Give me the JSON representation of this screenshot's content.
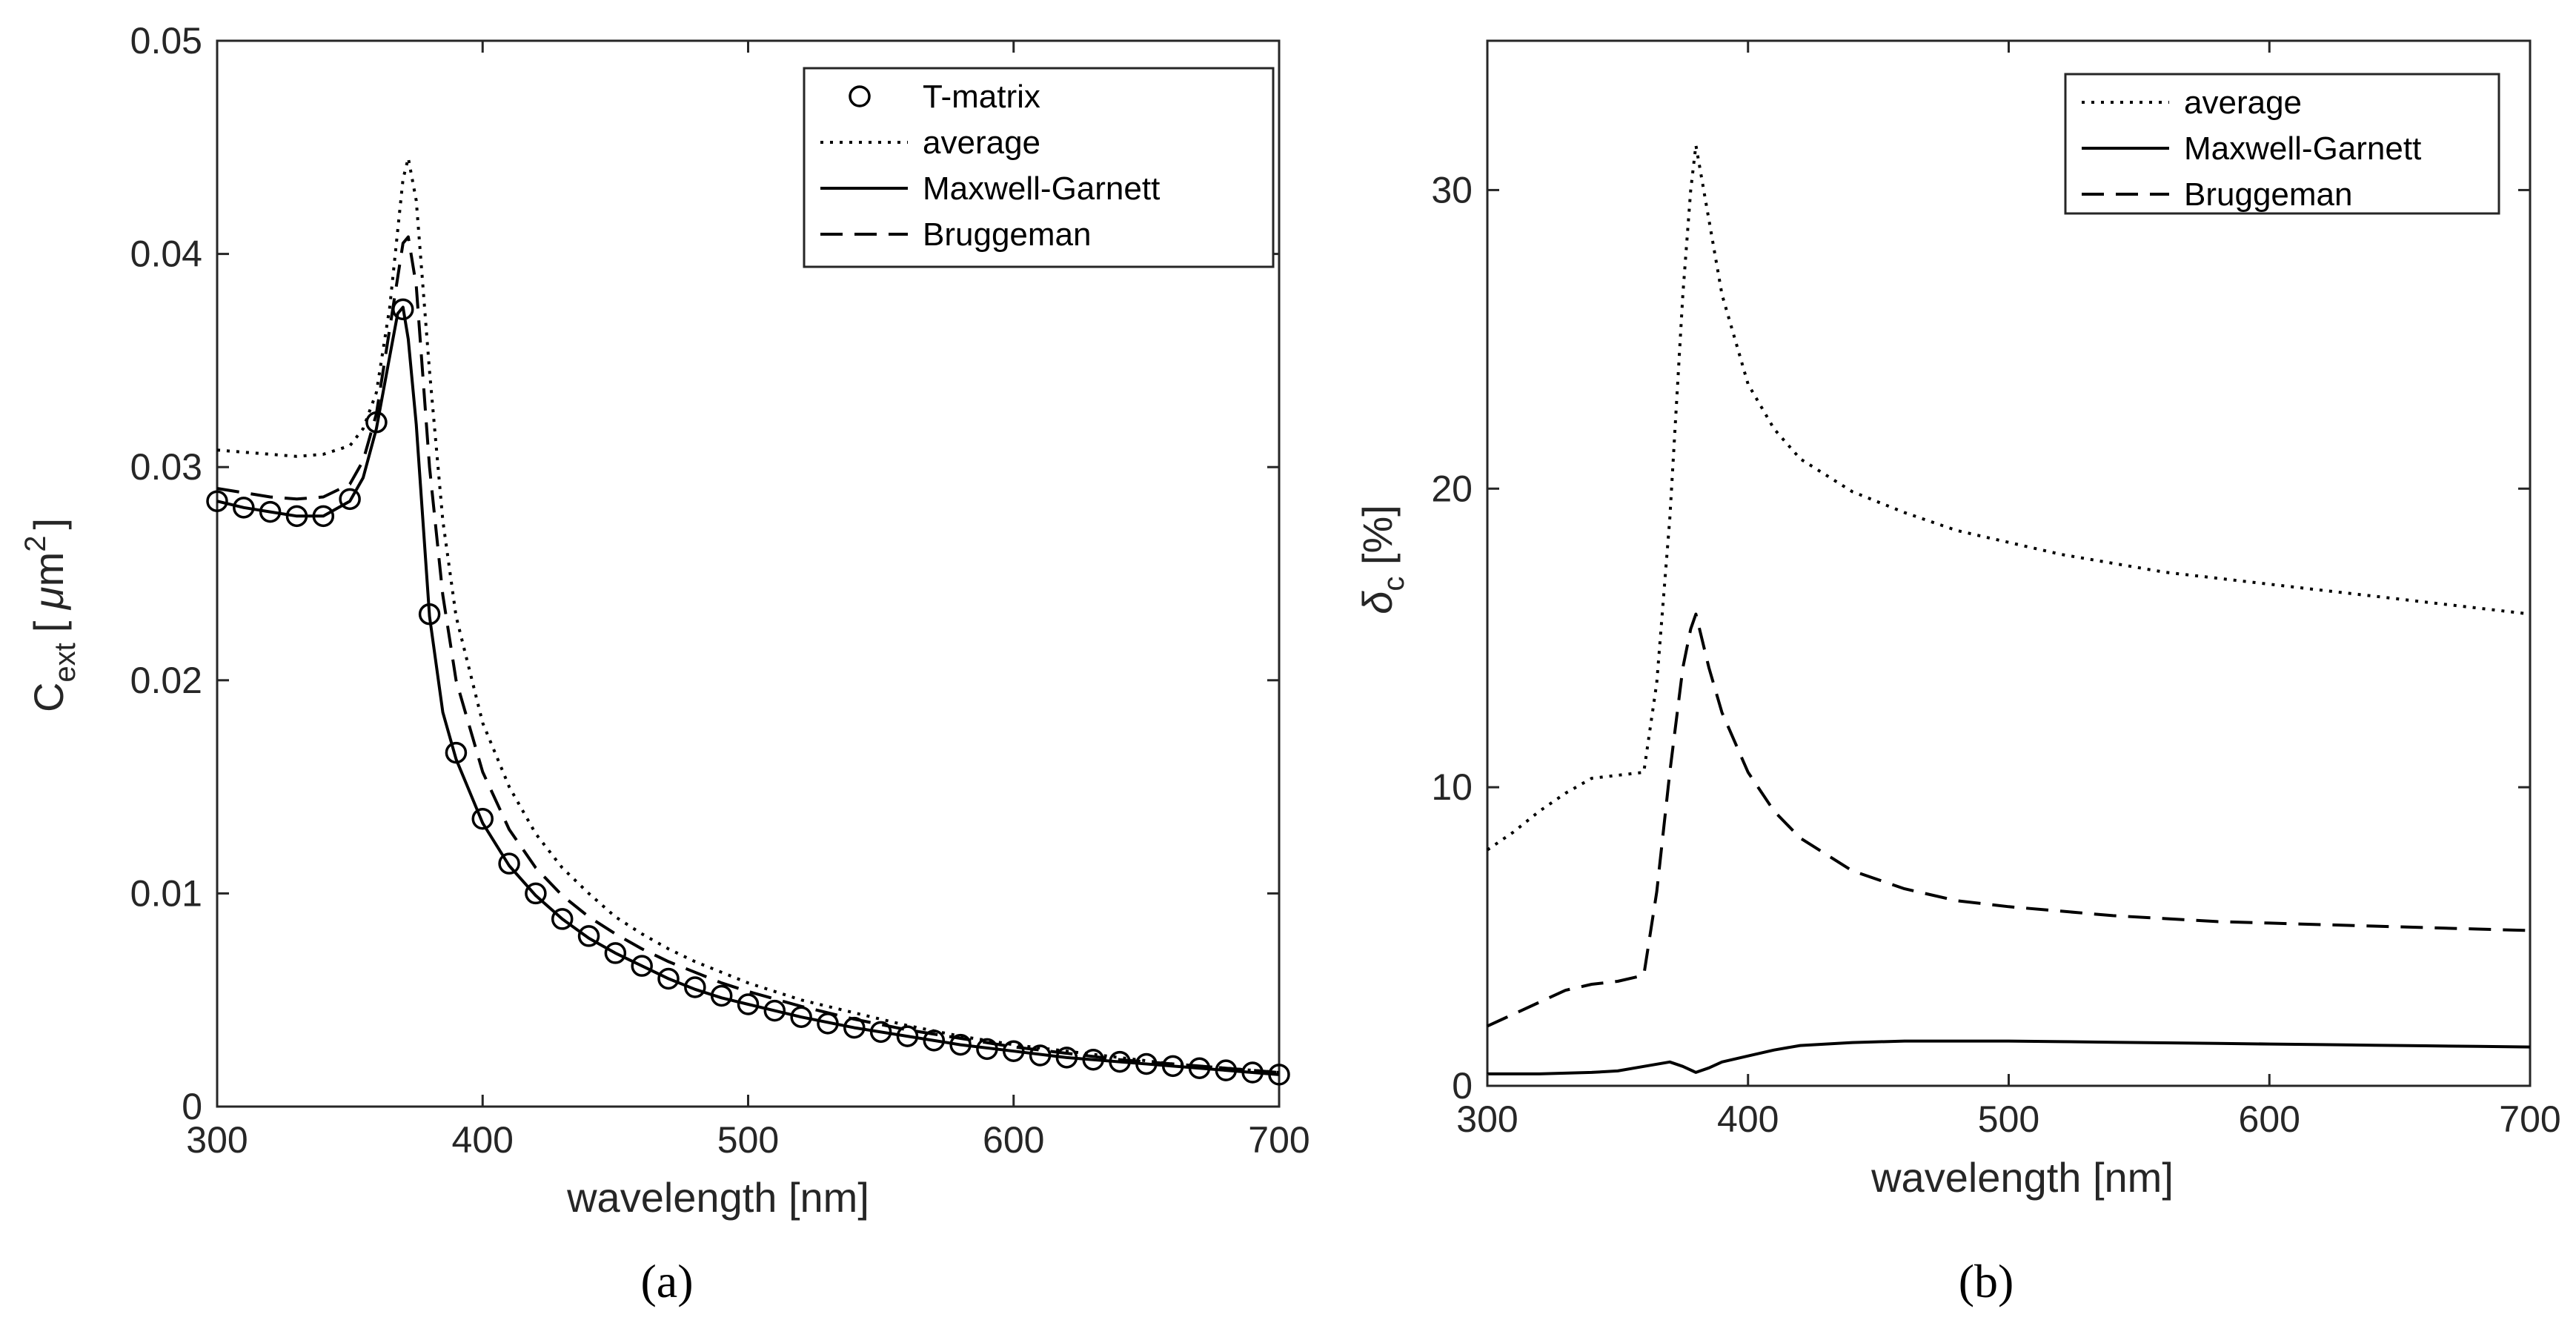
{
  "chart_data": [
    {
      "type": "line",
      "panel_label": "(a)",
      "xlabel": "wavelength [nm]",
      "ylabel": "C_ext [μm^2]",
      "ylabel_parts": {
        "main": "C",
        "sub": "ext",
        "unit_open": "[ ",
        "mu": "μ",
        "m": "m",
        "sup": "2",
        "unit_close": "]"
      },
      "xlim": [
        300,
        700
      ],
      "ylim": [
        0,
        0.05
      ],
      "xticks": [
        300,
        400,
        500,
        600,
        700
      ],
      "xtick_labels": [
        "300",
        "400",
        "500",
        "600",
        "700"
      ],
      "yticks": [
        0,
        0.01,
        0.02,
        0.03,
        0.04,
        0.05
      ],
      "ytick_labels": [
        "0",
        "0.01",
        "0.02",
        "0.03",
        "0.04",
        "0.05"
      ],
      "legend_position": "top-right",
      "series": [
        {
          "name": "T-matrix",
          "style": "circles",
          "x": [
            300,
            310,
            320,
            330,
            340,
            350,
            360,
            370,
            380,
            390,
            400,
            410,
            420,
            430,
            440,
            450,
            460,
            470,
            480,
            490,
            500,
            510,
            520,
            530,
            540,
            550,
            560,
            570,
            580,
            590,
            600,
            610,
            620,
            630,
            640,
            650,
            660,
            670,
            680,
            690,
            700
          ],
          "y": [
            0.0284,
            0.0281,
            0.0279,
            0.0277,
            0.0277,
            0.0285,
            0.0321,
            0.0374,
            0.0231,
            0.0166,
            0.0135,
            0.0114,
            0.01,
            0.0088,
            0.008,
            0.0072,
            0.0066,
            0.006,
            0.0056,
            0.0052,
            0.0048,
            0.0045,
            0.0042,
            0.0039,
            0.0037,
            0.0035,
            0.0033,
            0.0031,
            0.0029,
            0.0027,
            0.0026,
            0.0024,
            0.0023,
            0.0022,
            0.0021,
            0.002,
            0.0019,
            0.0018,
            0.0017,
            0.0016,
            0.0015
          ]
        },
        {
          "name": "average",
          "style": "dotted",
          "x": [
            300,
            310,
            320,
            330,
            340,
            350,
            355,
            360,
            365,
            370,
            372,
            375,
            380,
            385,
            390,
            400,
            410,
            420,
            430,
            440,
            450,
            460,
            470,
            480,
            490,
            500,
            520,
            540,
            560,
            580,
            600,
            620,
            640,
            660,
            680,
            700
          ],
          "y": [
            0.0308,
            0.0307,
            0.0306,
            0.0305,
            0.0306,
            0.031,
            0.0318,
            0.0335,
            0.0375,
            0.0435,
            0.0445,
            0.0425,
            0.0345,
            0.0275,
            0.023,
            0.018,
            0.015,
            0.0128,
            0.0112,
            0.01,
            0.0089,
            0.0081,
            0.0074,
            0.0068,
            0.0063,
            0.0058,
            0.005,
            0.0044,
            0.0038,
            0.0033,
            0.0029,
            0.0026,
            0.0023,
            0.002,
            0.0018,
            0.0016
          ]
        },
        {
          "name": "Maxwell-Garnett",
          "style": "solid",
          "x": [
            300,
            310,
            320,
            330,
            340,
            350,
            355,
            360,
            365,
            368,
            370,
            372,
            375,
            380,
            385,
            390,
            400,
            410,
            420,
            430,
            440,
            450,
            460,
            470,
            480,
            490,
            500,
            520,
            540,
            560,
            580,
            600,
            620,
            640,
            660,
            680,
            700
          ],
          "y": [
            0.0284,
            0.0281,
            0.0279,
            0.0277,
            0.0277,
            0.0284,
            0.0295,
            0.0318,
            0.0352,
            0.0372,
            0.0375,
            0.036,
            0.032,
            0.023,
            0.0185,
            0.0163,
            0.0133,
            0.0113,
            0.0099,
            0.0088,
            0.0079,
            0.0072,
            0.0066,
            0.006,
            0.0055,
            0.0051,
            0.0048,
            0.0042,
            0.0037,
            0.0033,
            0.0029,
            0.0026,
            0.0023,
            0.0021,
            0.0019,
            0.0017,
            0.0015
          ]
        },
        {
          "name": "Bruggeman",
          "style": "dashed",
          "x": [
            300,
            310,
            320,
            330,
            340,
            350,
            355,
            360,
            365,
            370,
            372,
            375,
            380,
            385,
            390,
            400,
            410,
            420,
            430,
            440,
            450,
            460,
            470,
            480,
            490,
            500,
            520,
            540,
            560,
            580,
            600,
            620,
            640,
            660,
            680,
            700
          ],
          "y": [
            0.029,
            0.0288,
            0.0286,
            0.0285,
            0.0286,
            0.0292,
            0.0303,
            0.0325,
            0.0365,
            0.0405,
            0.0408,
            0.0385,
            0.03,
            0.024,
            0.02,
            0.0157,
            0.013,
            0.0112,
            0.0099,
            0.0089,
            0.0081,
            0.0074,
            0.0068,
            0.0063,
            0.0058,
            0.0054,
            0.0047,
            0.0041,
            0.0036,
            0.0032,
            0.0028,
            0.0025,
            0.0022,
            0.002,
            0.0018,
            0.0016
          ]
        }
      ]
    },
    {
      "type": "line",
      "panel_label": "(b)",
      "xlabel": "wavelength [nm]",
      "ylabel": "δ_c [%]",
      "ylabel_parts": {
        "main": "δ",
        "sub": "c",
        "unit": " [%]"
      },
      "xlim": [
        300,
        700
      ],
      "ylim": [
        0,
        35
      ],
      "xticks": [
        300,
        400,
        500,
        600,
        700
      ],
      "xtick_labels": [
        "300",
        "400",
        "500",
        "600",
        "700"
      ],
      "yticks": [
        0,
        10,
        20,
        30
      ],
      "ytick_labels": [
        "0",
        "10",
        "20",
        "30"
      ],
      "legend_position": "top-right",
      "series": [
        {
          "name": "average",
          "style": "dotted",
          "x": [
            300,
            310,
            320,
            330,
            340,
            350,
            360,
            365,
            370,
            375,
            378,
            380,
            385,
            390,
            400,
            410,
            420,
            440,
            460,
            480,
            500,
            520,
            540,
            560,
            580,
            600,
            620,
            640,
            660,
            680,
            700
          ],
          "y": [
            7.9,
            8.5,
            9.2,
            9.8,
            10.3,
            10.4,
            10.5,
            13.5,
            19.0,
            26.5,
            30.0,
            31.5,
            29.0,
            26.5,
            23.5,
            22.0,
            21.0,
            19.9,
            19.2,
            18.6,
            18.2,
            17.8,
            17.5,
            17.2,
            17.0,
            16.8,
            16.6,
            16.4,
            16.2,
            16.0,
            15.8
          ]
        },
        {
          "name": "Maxwell-Garnett",
          "style": "solid",
          "x": [
            300,
            320,
            340,
            350,
            360,
            370,
            375,
            380,
            385,
            390,
            400,
            410,
            420,
            440,
            460,
            480,
            500,
            520,
            540,
            560,
            580,
            600,
            620,
            640,
            660,
            680,
            700
          ],
          "y": [
            0.4,
            0.4,
            0.45,
            0.5,
            0.65,
            0.8,
            0.65,
            0.45,
            0.6,
            0.8,
            1.0,
            1.2,
            1.35,
            1.45,
            1.5,
            1.5,
            1.5,
            1.48,
            1.46,
            1.44,
            1.42,
            1.4,
            1.38,
            1.36,
            1.34,
            1.32,
            1.3
          ]
        },
        {
          "name": "Bruggeman",
          "style": "dashed",
          "x": [
            300,
            310,
            320,
            330,
            340,
            350,
            360,
            365,
            370,
            375,
            378,
            380,
            385,
            390,
            400,
            410,
            420,
            440,
            460,
            480,
            500,
            520,
            540,
            560,
            580,
            600,
            620,
            640,
            660,
            680,
            700
          ],
          "y": [
            2.0,
            2.4,
            2.8,
            3.2,
            3.4,
            3.5,
            3.7,
            6.5,
            10.5,
            14.0,
            15.3,
            15.8,
            14.0,
            12.5,
            10.5,
            9.2,
            8.3,
            7.2,
            6.6,
            6.2,
            6.0,
            5.85,
            5.7,
            5.6,
            5.5,
            5.45,
            5.4,
            5.35,
            5.3,
            5.25,
            5.2
          ]
        }
      ]
    }
  ]
}
